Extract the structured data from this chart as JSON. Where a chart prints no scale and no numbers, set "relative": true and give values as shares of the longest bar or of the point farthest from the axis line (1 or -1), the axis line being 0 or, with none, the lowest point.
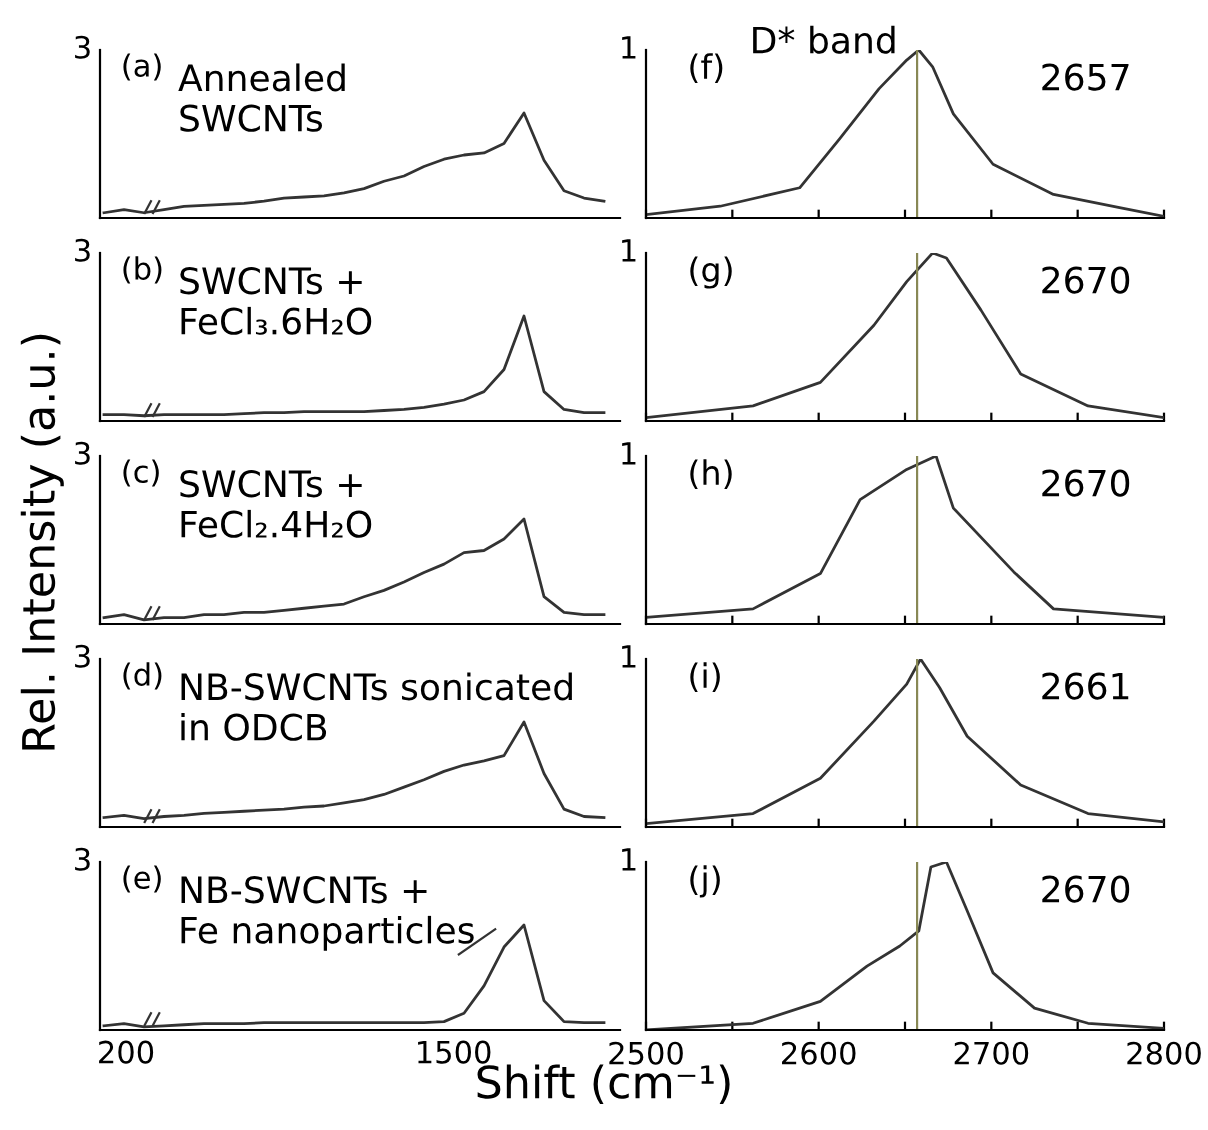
{
  "chart_data": [
    {
      "type": "line",
      "categories": [
        null,
        null,
        null,
        null,
        null,
        null,
        null,
        null,
        null,
        null,
        null,
        null,
        null,
        null,
        null,
        null,
        null,
        null,
        null,
        null,
        null,
        null,
        null,
        null,
        null,
        null
      ],
      "values": [
        0.05,
        0.08,
        0.05,
        0.08,
        0.11,
        0.12,
        0.13,
        0.14,
        0.16,
        0.19,
        0.2,
        0.21,
        0.24,
        0.28,
        0.35,
        0.4,
        0.49,
        0.56,
        0.6,
        0.62,
        0.71,
        1,
        0.55,
        0.26,
        0.19,
        0.16
      ],
      "color": "#333333",
      "relative": true,
      "tick_labels": false,
      "annotations": [
        "3",
        "(a)",
        "Annealed\nSWCNTs"
      ]
    },
    {
      "type": "line",
      "categories": [
        null,
        null,
        null,
        null,
        null,
        null,
        null,
        null,
        null,
        null,
        null,
        null,
        null,
        null,
        null,
        null,
        null,
        null,
        null,
        null,
        null,
        null,
        null,
        null,
        null,
        null
      ],
      "values": [
        0.06,
        0.06,
        0.05,
        0.06,
        0.06,
        0.06,
        0.06,
        0.07,
        0.08,
        0.08,
        0.09,
        0.09,
        0.09,
        0.09,
        0.1,
        0.11,
        0.13,
        0.16,
        0.2,
        0.28,
        0.49,
        1,
        0.28,
        0.11,
        0.08,
        0.08
      ],
      "color": "#333333",
      "relative": true,
      "tick_labels": false,
      "annotations": [
        "3",
        "(b)",
        "SWCNTs +\nFeCl₃.6H₂O"
      ]
    },
    {
      "type": "line",
      "categories": [
        null,
        null,
        null,
        null,
        null,
        null,
        null,
        null,
        null,
        null,
        null,
        null,
        null,
        null,
        null,
        null,
        null,
        null,
        null,
        null,
        null,
        null,
        null,
        null,
        null,
        null
      ],
      "values": [
        0.06,
        0.09,
        0.04,
        0.06,
        0.06,
        0.09,
        0.09,
        0.11,
        0.11,
        0.13,
        0.15,
        0.17,
        0.19,
        0.26,
        0.32,
        0.4,
        0.49,
        0.57,
        0.68,
        0.7,
        0.81,
        1,
        0.26,
        0.11,
        0.09,
        0.09
      ],
      "color": "#333333",
      "relative": true,
      "tick_labels": false,
      "ylabel": "Rel. Intensity (a.u.)",
      "annotations": [
        "3",
        "(c)",
        "SWCNTs +\nFeCl₂.4H₂O"
      ]
    },
    {
      "type": "line",
      "categories": [
        null,
        null,
        null,
        null,
        null,
        null,
        null,
        null,
        null,
        null,
        null,
        null,
        null,
        null,
        null,
        null,
        null,
        null,
        null,
        null,
        null,
        null,
        null,
        null,
        null,
        null
      ],
      "values": [
        0.09,
        0.11,
        0.08,
        0.1,
        0.11,
        0.13,
        0.14,
        0.15,
        0.16,
        0.17,
        0.19,
        0.2,
        0.23,
        0.26,
        0.31,
        0.38,
        0.45,
        0.53,
        0.59,
        0.63,
        0.68,
        1,
        0.51,
        0.17,
        0.1,
        0.09
      ],
      "color": "#333333",
      "relative": true,
      "tick_labels": false,
      "annotations": [
        "3",
        "(d)",
        "NB-SWCNTs sonicated\nin ODCB"
      ]
    },
    {
      "type": "line",
      "categories": [
        null,
        null,
        null,
        null,
        null,
        null,
        null,
        null,
        null,
        null,
        null,
        null,
        null,
        null,
        null,
        null,
        null,
        null,
        null,
        null,
        null,
        null,
        null,
        null,
        null,
        null
      ],
      "values": [
        0.04,
        0.06,
        0.03,
        0.04,
        0.05,
        0.06,
        0.06,
        0.06,
        0.07,
        0.07,
        0.07,
        0.07,
        0.07,
        0.07,
        0.07,
        0.07,
        0.07,
        0.08,
        0.16,
        0.42,
        0.79,
        1,
        0.28,
        0.08,
        0.07,
        0.07
      ],
      "color": "#333333",
      "relative": true,
      "tick_labels": false,
      "annotations": [
        "3",
        "(e)",
        "NB-SWCNTs +\nFe nanoparticles",
        "200",
        "1500"
      ]
    },
    {
      "type": "line",
      "x": [
        2500,
        2543,
        2589,
        2612,
        2635,
        2651,
        2658,
        2666,
        2678,
        2701,
        2736,
        2775,
        2800
      ],
      "values": [
        0.02,
        0.07,
        0.18,
        0.47,
        0.77,
        0.94,
        1.0,
        0.9,
        0.62,
        0.32,
        0.14,
        0.06,
        0.01
      ],
      "color": "#333333",
      "relative": true,
      "xlim": [
        2500,
        2800
      ],
      "xticks": [
        {
          "value": 2500,
          "label": null
        },
        {
          "value": 2550,
          "label": null
        },
        {
          "value": 2600,
          "label": null
        },
        {
          "value": 2650,
          "label": null
        },
        {
          "value": 2700,
          "label": null
        },
        {
          "value": 2750,
          "label": null
        },
        {
          "value": 2800,
          "label": null
        }
      ],
      "tick_labels": false,
      "ref_lines": [
        {
          "axis": "x",
          "value": 2657,
          "color": "#888855"
        }
      ],
      "annotations": [
        "1",
        "(f)",
        "D* band",
        "2657"
      ]
    },
    {
      "type": "line",
      "x": [
        2500,
        2562,
        2601,
        2632,
        2651,
        2666,
        2674,
        2694,
        2717,
        2756,
        2800
      ],
      "values": [
        0.02,
        0.09,
        0.23,
        0.57,
        0.83,
        1,
        0.97,
        0.66,
        0.28,
        0.09,
        0.02
      ],
      "color": "#333333",
      "relative": true,
      "xlim": [
        2500,
        2800
      ],
      "xticks": [
        {
          "value": 2500,
          "label": null
        },
        {
          "value": 2550,
          "label": null
        },
        {
          "value": 2600,
          "label": null
        },
        {
          "value": 2650,
          "label": null
        },
        {
          "value": 2700,
          "label": null
        },
        {
          "value": 2750,
          "label": null
        },
        {
          "value": 2800,
          "label": null
        }
      ],
      "tick_labels": false,
      "ref_lines": [
        {
          "axis": "x",
          "value": 2657,
          "color": "#888855"
        }
      ],
      "annotations": [
        "1",
        "(g)",
        "2670"
      ]
    },
    {
      "type": "line",
      "x": [
        2500,
        2562,
        2601,
        2624,
        2651,
        2668,
        2678,
        2713,
        2736,
        2800
      ],
      "values": [
        0.04,
        0.09,
        0.3,
        0.74,
        0.92,
        1.0,
        0.69,
        0.31,
        0.09,
        0.04
      ],
      "color": "#333333",
      "relative": true,
      "xlim": [
        2500,
        2800
      ],
      "xticks": [
        {
          "value": 2500,
          "label": null
        },
        {
          "value": 2550,
          "label": null
        },
        {
          "value": 2600,
          "label": null
        },
        {
          "value": 2650,
          "label": null
        },
        {
          "value": 2700,
          "label": null
        },
        {
          "value": 2750,
          "label": null
        },
        {
          "value": 2800,
          "label": null
        }
      ],
      "tick_labels": false,
      "ref_lines": [
        {
          "axis": "x",
          "value": 2657,
          "color": "#888855"
        }
      ],
      "annotations": [
        "1",
        "(h)",
        "2670"
      ]
    },
    {
      "type": "line",
      "x": [
        2500,
        2562,
        2601,
        2632,
        2651,
        2659,
        2670,
        2686,
        2717,
        2756,
        2800
      ],
      "values": [
        0.02,
        0.08,
        0.29,
        0.63,
        0.85,
        1,
        0.83,
        0.54,
        0.25,
        0.08,
        0.03
      ],
      "color": "#333333",
      "relative": true,
      "xlim": [
        2500,
        2800
      ],
      "xticks": [
        {
          "value": 2500,
          "label": null
        },
        {
          "value": 2550,
          "label": null
        },
        {
          "value": 2600,
          "label": null
        },
        {
          "value": 2650,
          "label": null
        },
        {
          "value": 2700,
          "label": null
        },
        {
          "value": 2750,
          "label": null
        },
        {
          "value": 2800,
          "label": null
        }
      ],
      "tick_labels": false,
      "ref_lines": [
        {
          "axis": "x",
          "value": 2657,
          "color": "#888855"
        }
      ],
      "annotations": [
        "1",
        "(i)",
        "2661"
      ]
    },
    {
      "type": "line",
      "x": [
        2500,
        2562,
        2601,
        2628,
        2647,
        2658,
        2665,
        2674,
        2686,
        2701,
        2725,
        2756,
        2800
      ],
      "values": [
        0.0,
        0.04,
        0.17,
        0.38,
        0.5,
        0.59,
        0.97,
        1.0,
        0.71,
        0.34,
        0.13,
        0.04,
        0.01
      ],
      "color": "#333333",
      "relative": true,
      "xlim": [
        2500,
        2800
      ],
      "xticks": [
        2500,
        2600,
        2700,
        2800,
        {
          "value": 2550,
          "label": null
        },
        {
          "value": 2650,
          "label": null
        },
        {
          "value": 2750,
          "label": null
        }
      ],
      "tick_labels": "x",
      "ref_lines": [
        {
          "axis": "x",
          "value": 2657,
          "color": "#888855"
        }
      ],
      "annotations": [
        "1",
        "(j)",
        "2670"
      ],
      "xlabel": "Shift (cm⁻¹)"
    }
  ]
}
